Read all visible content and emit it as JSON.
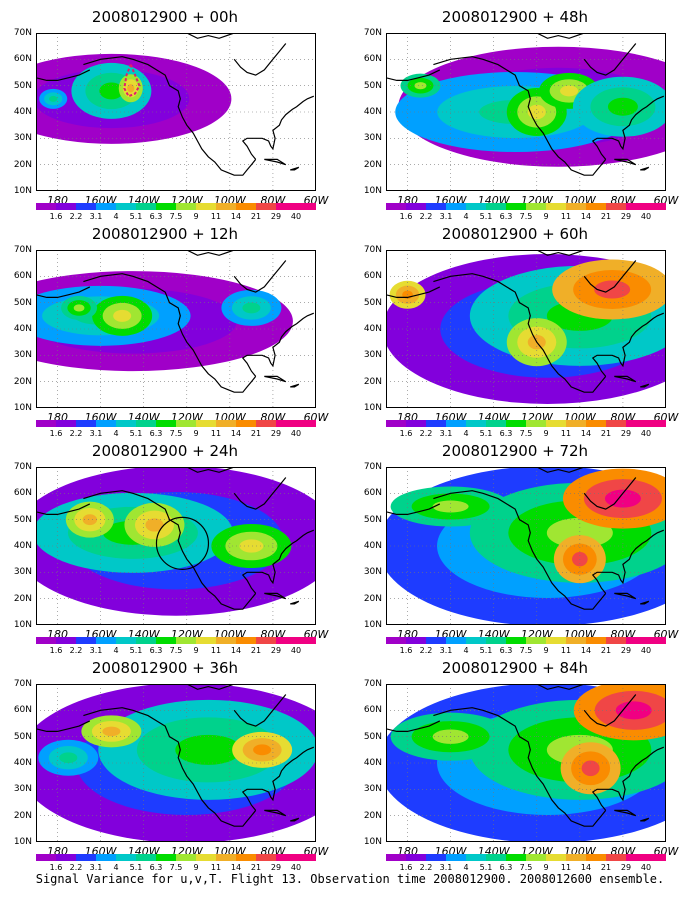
{
  "caption": "Signal Variance for u,v,T. Flight 13. Observation time 2008012900. 2008012600 ensemble.",
  "lat_labels": [
    "70N",
    "60N",
    "50N",
    "40N",
    "30N",
    "20N",
    "10N"
  ],
  "lon_labels": [
    "180",
    "160W",
    "140W",
    "120W",
    "100W",
    "80W",
    "60W"
  ],
  "colorbar": {
    "labels": [
      "1.6",
      "2.2",
      "3.1",
      "4",
      "5.1",
      "6.3",
      "7.5",
      "9",
      "11",
      "14",
      "21",
      "29",
      "40"
    ],
    "colors": [
      "#a000c8",
      "#8200dc",
      "#1e3cff",
      "#00a0ff",
      "#00c8c8",
      "#00d28c",
      "#00dc00",
      "#a0e632",
      "#e6dc32",
      "#f0af28",
      "#fa8c00",
      "#f04646",
      "#f00082"
    ]
  },
  "panels": [
    {
      "title": "2008012900 + 00h",
      "intensity": 0.15,
      "circle": false,
      "red_path": true
    },
    {
      "title": "2008012900 + 48h",
      "intensity": 0.55,
      "circle": false,
      "red_path": false
    },
    {
      "title": "2008012900 + 12h",
      "intensity": 0.3,
      "circle": false,
      "red_path": false
    },
    {
      "title": "2008012900 + 60h",
      "intensity": 0.65,
      "circle": false,
      "red_path": false
    },
    {
      "title": "2008012900 + 24h",
      "intensity": 0.4,
      "circle": true,
      "red_path": false
    },
    {
      "title": "2008012900 + 72h",
      "intensity": 0.75,
      "circle": false,
      "red_path": false
    },
    {
      "title": "2008012900 + 36h",
      "intensity": 0.5,
      "circle": false,
      "red_path": false
    },
    {
      "title": "2008012900 + 84h",
      "intensity": 0.85,
      "circle": false,
      "red_path": false
    }
  ]
}
